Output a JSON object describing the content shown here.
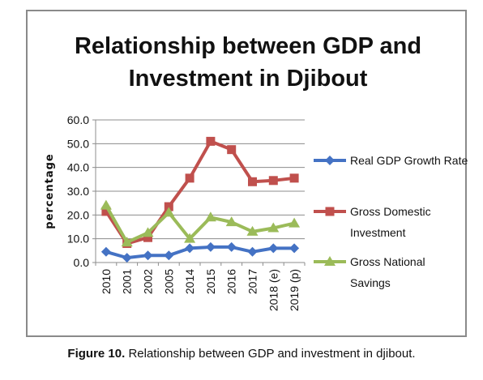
{
  "caption": {
    "label": "Figure 10.",
    "text": " Relationship between GDP and investment in djibout."
  },
  "chart_data": {
    "type": "line",
    "title_lines": [
      "Relationship between GDP and",
      "Investment in Djibout"
    ],
    "xlabel": "",
    "ylabel": "percentage",
    "ylim": [
      0,
      60
    ],
    "yticks": [
      "0.0",
      "10.0",
      "20.0",
      "30.0",
      "40.0",
      "50.0",
      "60.0"
    ],
    "categories": [
      "2010",
      "2001",
      "2002",
      "2005",
      "2014",
      "2015",
      "2016",
      "2017",
      "2018 (e)",
      "2019 (p)"
    ],
    "grid": true,
    "legend_position": "right",
    "series": [
      {
        "name": "Real GDP Growth Rate",
        "legend_lines": [
          "Real GDP Growth Rate"
        ],
        "color": "#4472c4",
        "marker": "diamond",
        "values": [
          4.5,
          2.0,
          3.0,
          3.0,
          6.0,
          6.5,
          6.5,
          4.5,
          6.0,
          6.0
        ]
      },
      {
        "name": "Gross Domestic Investment",
        "legend_lines": [
          "Gross Domestic",
          "Investment"
        ],
        "color": "#c0504d",
        "marker": "square",
        "values": [
          21.5,
          8.0,
          10.5,
          23.5,
          35.5,
          51.0,
          47.5,
          34.0,
          34.5,
          35.5
        ]
      },
      {
        "name": "Gross National Savings",
        "legend_lines": [
          "Gross National",
          "Savings"
        ],
        "color": "#9bbb59",
        "marker": "triangle",
        "values": [
          24.0,
          8.5,
          12.5,
          21.0,
          10.0,
          19.0,
          17.0,
          13.0,
          14.5,
          16.5
        ]
      }
    ]
  }
}
